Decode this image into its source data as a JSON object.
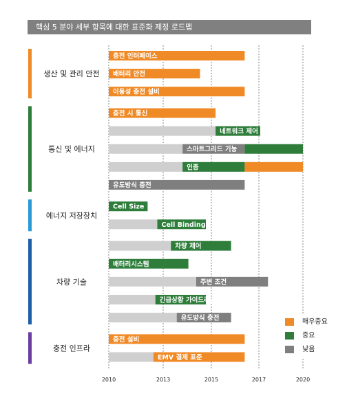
{
  "title": "핵심 5 분야 세부 항목에 대한 표준화 제정 로드맵",
  "colors": {
    "매우중요": "#F08A26",
    "중요": "#2E7D3A",
    "낮음": "#7F7F7F",
    "prelim": "#CFCFCF"
  },
  "legend": [
    {
      "key": "매우중요",
      "label": "매우중요"
    },
    {
      "key": "중요",
      "label": "중요"
    },
    {
      "key": "낮음",
      "label": "낮음"
    }
  ],
  "chart_data": {
    "type": "bar",
    "subtype": "gantt",
    "x_ticks": [
      "2010",
      "2013",
      "2015",
      "2017",
      "2020"
    ],
    "xlim": [
      2010,
      2020
    ],
    "groups": [
      {
        "name": "생산 및 관리 안전",
        "accent": "#F08A26",
        "rows": [
          {
            "label": "충전 인터페이스",
            "segments": [
              {
                "start": 2010,
                "end": 2017,
                "priority": "매우중요"
              }
            ]
          },
          {
            "label": "배터리 안전",
            "segments": [
              {
                "start": 2010,
                "end": 2014.7,
                "priority": "매우중요"
              }
            ]
          },
          {
            "label": "이동성 충전 설비",
            "segments": [
              {
                "start": 2010,
                "end": 2017,
                "priority": "매우중요"
              }
            ]
          }
        ]
      },
      {
        "name": "통신 및 에너지",
        "accent": "#2E7D3A",
        "rows": [
          {
            "label": "충전 시 통신",
            "segments": [
              {
                "start": 2010,
                "end": 2015.5,
                "priority": "매우중요"
              }
            ]
          },
          {
            "label": "네트워크 제어",
            "segments": [
              {
                "start": 2010,
                "end": 2015.5,
                "priority": "prelim"
              },
              {
                "start": 2015.5,
                "end": 2017.8,
                "priority": "중요"
              }
            ]
          },
          {
            "label": "스마트그리드 기능",
            "segments": [
              {
                "start": 2010,
                "end": 2013.8,
                "priority": "prelim"
              },
              {
                "start": 2013.8,
                "end": 2017,
                "priority": "낮음"
              },
              {
                "start": 2017,
                "end": 2020,
                "priority": "중요"
              }
            ]
          },
          {
            "label": "인증",
            "segments": [
              {
                "start": 2010,
                "end": 2013.8,
                "priority": "prelim"
              },
              {
                "start": 2013.8,
                "end": 2017,
                "priority": "중요"
              },
              {
                "start": 2017,
                "end": 2020,
                "priority": "매우중요"
              }
            ]
          },
          {
            "label": "유도방식 충전",
            "segments": [
              {
                "start": 2010,
                "end": 2017,
                "priority": "낮음"
              }
            ]
          }
        ]
      },
      {
        "name": "에너지 저장장치",
        "accent": "#2A9BD6",
        "rows": [
          {
            "label": "Cell Size",
            "segments": [
              {
                "start": 2010,
                "end": 2012,
                "priority": "중요"
              }
            ]
          },
          {
            "label": "Cell Binding",
            "segments": [
              {
                "start": 2010,
                "end": 2012.5,
                "priority": "prelim"
              },
              {
                "start": 2012.5,
                "end": 2015,
                "priority": "중요"
              }
            ]
          }
        ]
      },
      {
        "name": "차량 기술",
        "accent": "#1F5FA8",
        "rows": [
          {
            "label": "차량 제어",
            "segments": [
              {
                "start": 2010,
                "end": 2013.2,
                "priority": "prelim"
              },
              {
                "start": 2013.2,
                "end": 2016.3,
                "priority": "중요"
              }
            ]
          },
          {
            "label": "배터리시스템",
            "segments": [
              {
                "start": 2010,
                "end": 2014.1,
                "priority": "중요"
              }
            ]
          },
          {
            "label": "주변 조건",
            "segments": [
              {
                "start": 2010,
                "end": 2014.5,
                "priority": "prelim"
              },
              {
                "start": 2014.5,
                "end": 2018.2,
                "priority": "낮음"
              }
            ]
          },
          {
            "label": "긴급상황 가이드라인",
            "segments": [
              {
                "start": 2010,
                "end": 2012.4,
                "priority": "prelim"
              },
              {
                "start": 2012.4,
                "end": 2015,
                "priority": "중요"
              }
            ]
          },
          {
            "label": "유도방식 충전",
            "segments": [
              {
                "start": 2010,
                "end": 2013.5,
                "priority": "prelim"
              },
              {
                "start": 2013.5,
                "end": 2016.3,
                "priority": "낮음"
              }
            ]
          }
        ]
      },
      {
        "name": "충전 인프라",
        "accent": "#6A3FA0",
        "rows": [
          {
            "label": "충전 설비",
            "segments": [
              {
                "start": 2010,
                "end": 2017,
                "priority": "매우중요"
              }
            ]
          },
          {
            "label": "EMV 결제 표준",
            "segments": [
              {
                "start": 2010,
                "end": 2012.3,
                "priority": "prelim"
              },
              {
                "start": 2012.3,
                "end": 2017,
                "priority": "매우중요"
              }
            ]
          }
        ]
      }
    ]
  }
}
